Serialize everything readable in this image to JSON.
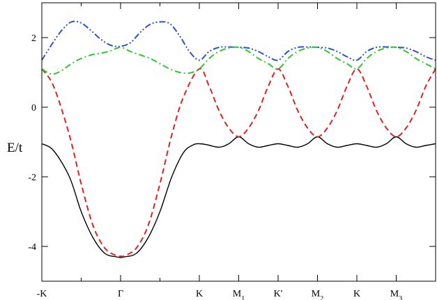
{
  "chart_data": {
    "type": "line",
    "title": "",
    "xlabel": "",
    "ylabel": "E/t",
    "ylim": [
      -5,
      3
    ],
    "y_ticks": [
      {
        "value": 2,
        "label": "2"
      },
      {
        "value": 0,
        "label": "0"
      },
      {
        "value": -2,
        "label": "-2"
      },
      {
        "value": -4,
        "label": "-4"
      }
    ],
    "xlim": [
      0,
      10
    ],
    "x_ticks": [
      {
        "value": 0,
        "label": "-K",
        "sub": ""
      },
      {
        "value": 2,
        "label": "Γ",
        "sub": ""
      },
      {
        "value": 4,
        "label": "K",
        "sub": ""
      },
      {
        "value": 5,
        "label": "M",
        "sub": "1"
      },
      {
        "value": 6,
        "label": "K'",
        "sub": ""
      },
      {
        "value": 7,
        "label": "M",
        "sub": "2"
      },
      {
        "value": 8,
        "label": "K",
        "sub": ""
      },
      {
        "value": 9,
        "label": "M",
        "sub": "3"
      }
    ],
    "series": [
      {
        "color": "#000000",
        "dash": "solid",
        "x": [
          0,
          0.3,
          0.7,
          1.0,
          1.3,
          1.6,
          1.9,
          2.0,
          2.1,
          2.4,
          2.7,
          3.0,
          3.3,
          3.6,
          3.85,
          4.0,
          4.2,
          4.5,
          4.75,
          5.0,
          5.25,
          5.5,
          5.75,
          6.0,
          6.25,
          6.5,
          6.75,
          7.0,
          7.25,
          7.5,
          7.75,
          8.0,
          8.25,
          8.5,
          8.75,
          9.0,
          9.25,
          9.5,
          9.75,
          10.0
        ],
        "y": [
          -1.05,
          -1.25,
          -2.0,
          -3.0,
          -3.75,
          -4.2,
          -4.3,
          -4.32,
          -4.3,
          -4.2,
          -3.75,
          -3.0,
          -2.0,
          -1.3,
          -1.08,
          -1.05,
          -1.08,
          -1.15,
          -1.05,
          -0.85,
          -1.05,
          -1.15,
          -1.1,
          -1.05,
          -1.1,
          -1.15,
          -1.05,
          -0.85,
          -1.05,
          -1.15,
          -1.1,
          -1.05,
          -1.1,
          -1.15,
          -1.05,
          -0.85,
          -1.05,
          -1.15,
          -1.1,
          -1.05
        ]
      },
      {
        "color": "#e02020",
        "dash": "dashed",
        "x": [
          0,
          0.3,
          0.7,
          1.0,
          1.3,
          1.6,
          1.9,
          2.0,
          2.1,
          2.4,
          2.7,
          3.0,
          3.3,
          3.6,
          4.0,
          4.25,
          4.5,
          4.75,
          5.0,
          5.25,
          5.5,
          5.75,
          6.0,
          6.25,
          6.5,
          6.75,
          7.0,
          7.25,
          7.5,
          7.75,
          8.0,
          8.25,
          8.5,
          8.75,
          9.0,
          9.25,
          9.5,
          9.75,
          10.0
        ],
        "y": [
          1.1,
          0.6,
          -0.8,
          -2.2,
          -3.4,
          -4.05,
          -4.27,
          -4.28,
          -4.27,
          -4.05,
          -3.4,
          -2.2,
          -0.8,
          0.3,
          1.1,
          0.6,
          -0.1,
          -0.6,
          -0.85,
          -0.6,
          -0.1,
          0.6,
          1.1,
          0.6,
          -0.1,
          -0.6,
          -0.85,
          -0.6,
          -0.1,
          0.6,
          1.1,
          0.6,
          -0.1,
          -0.6,
          -0.85,
          -0.6,
          -0.1,
          0.6,
          1.1
        ]
      },
      {
        "color": "#2a4fd8",
        "dash": "dash-dot-dot",
        "x": [
          0,
          0.25,
          0.5,
          0.75,
          1.0,
          1.25,
          1.5,
          1.75,
          2.0,
          2.25,
          2.5,
          2.75,
          3.0,
          3.25,
          3.5,
          3.75,
          4.0,
          4.25,
          4.5,
          4.75,
          5.0,
          5.25,
          5.5,
          5.75,
          6.0,
          6.25,
          6.5,
          6.75,
          7.0,
          7.25,
          7.5,
          7.75,
          8.0,
          8.25,
          8.5,
          8.75,
          9.0,
          9.25,
          9.5,
          9.75,
          10.0
        ],
        "y": [
          1.35,
          1.8,
          2.2,
          2.45,
          2.42,
          2.2,
          1.95,
          1.78,
          1.75,
          1.85,
          2.15,
          2.38,
          2.45,
          2.4,
          2.05,
          1.6,
          1.35,
          1.6,
          1.72,
          1.73,
          1.72,
          1.7,
          1.6,
          1.45,
          1.35,
          1.6,
          1.72,
          1.73,
          1.72,
          1.7,
          1.6,
          1.45,
          1.35,
          1.6,
          1.72,
          1.73,
          1.72,
          1.7,
          1.6,
          1.45,
          1.35
        ]
      },
      {
        "color": "#2ec82e",
        "dash": "dash-dot",
        "x": [
          0,
          0.25,
          0.5,
          0.75,
          1.0,
          1.25,
          1.5,
          1.75,
          2.0,
          2.25,
          2.5,
          2.75,
          3.0,
          3.25,
          3.5,
          3.75,
          4.0,
          4.25,
          4.5,
          4.75,
          5.0,
          5.25,
          5.5,
          5.75,
          6.0,
          6.25,
          6.5,
          6.75,
          7.0,
          7.25,
          7.5,
          7.75,
          8.0,
          8.25,
          8.5,
          8.75,
          9.0,
          9.25,
          9.5,
          9.75,
          10.0
        ],
        "y": [
          1.1,
          0.95,
          1.05,
          1.25,
          1.4,
          1.5,
          1.55,
          1.62,
          1.72,
          1.6,
          1.5,
          1.4,
          1.25,
          1.1,
          1.0,
          0.98,
          1.1,
          1.4,
          1.6,
          1.7,
          1.72,
          1.6,
          1.4,
          1.25,
          1.1,
          1.4,
          1.6,
          1.7,
          1.72,
          1.6,
          1.4,
          1.25,
          1.1,
          1.4,
          1.6,
          1.7,
          1.72,
          1.6,
          1.4,
          1.25,
          1.1
        ]
      }
    ]
  }
}
